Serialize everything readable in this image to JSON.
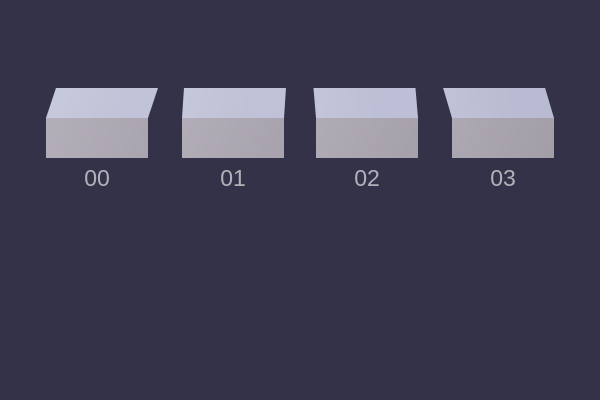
{
  "scene": {
    "background_color": "#333249",
    "label_color": "#b2b1b9"
  },
  "boxes": [
    {
      "label": "00",
      "top_color": "#c1c3d8",
      "front_color": "#afaab5"
    },
    {
      "label": "01",
      "top_color": "#bfc1d6",
      "front_color": "#ada8b3"
    },
    {
      "label": "02",
      "top_color": "#bcbfd5",
      "front_color": "#aba6b0"
    },
    {
      "label": "03",
      "top_color": "#b9bbd2",
      "front_color": "#a8a3ad"
    }
  ]
}
